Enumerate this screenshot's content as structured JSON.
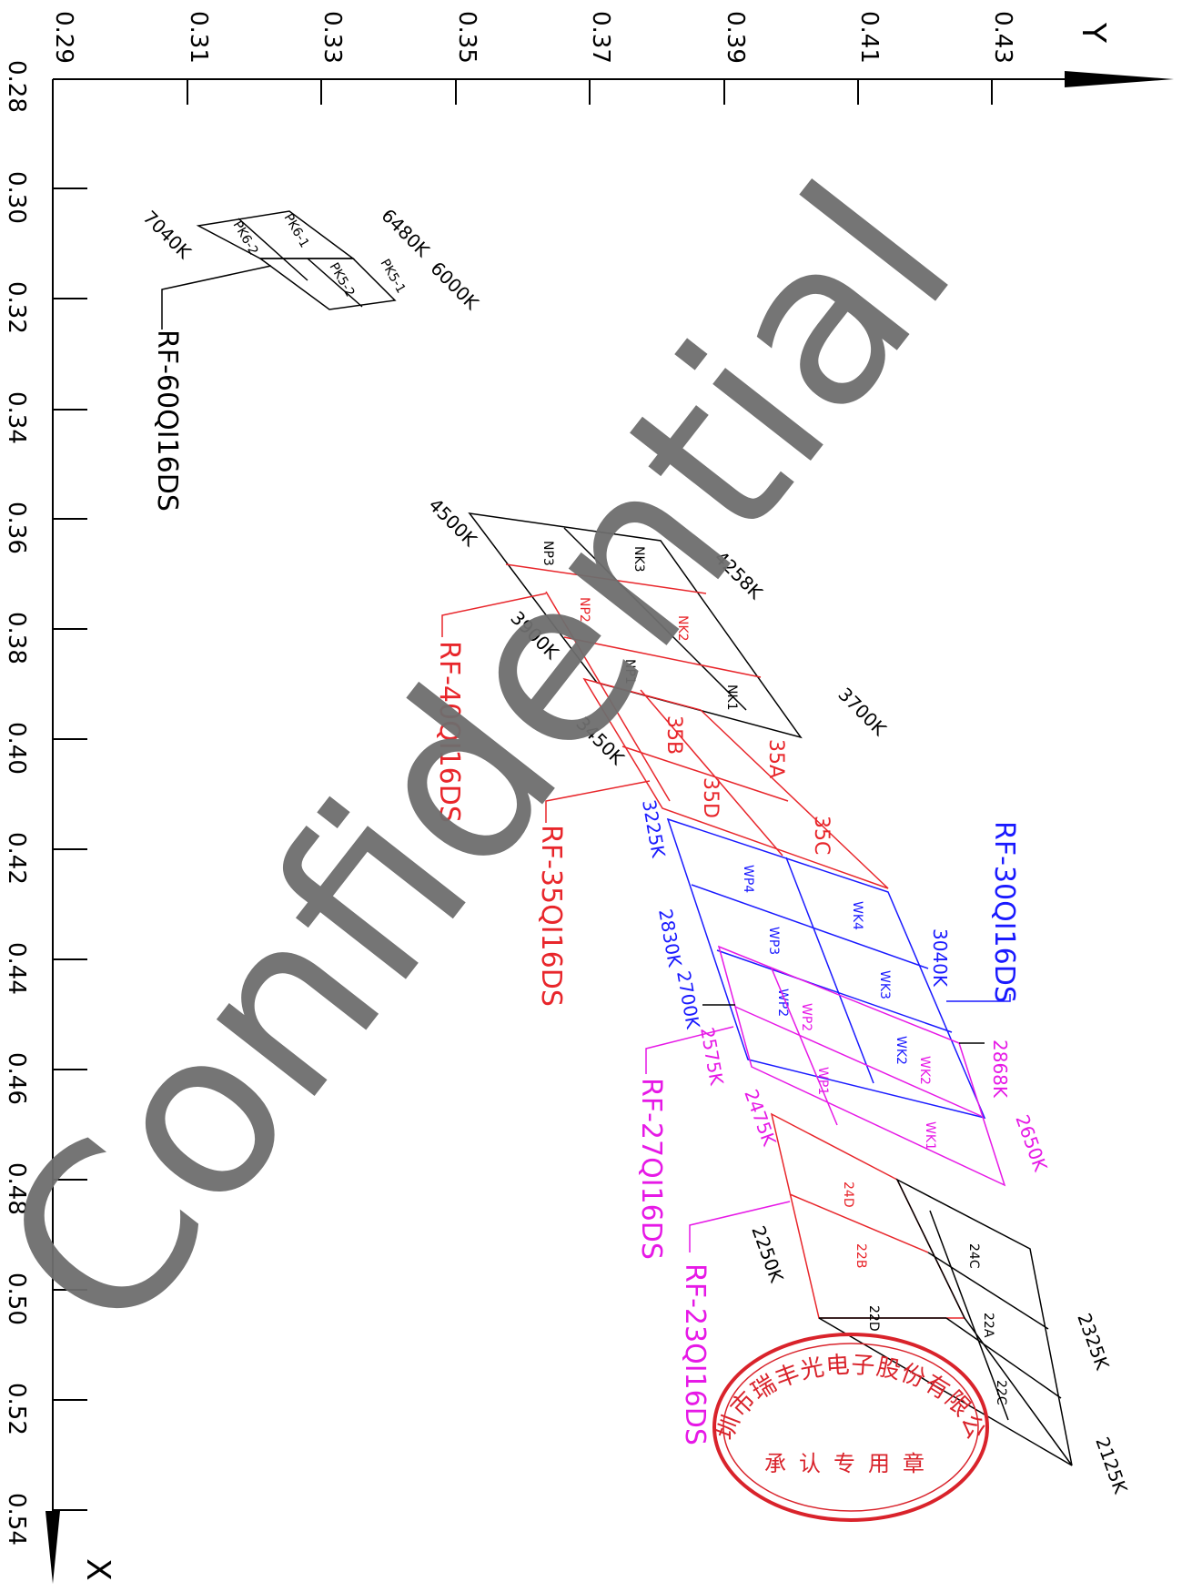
{
  "axes": {
    "x_axis_label": "X",
    "y_axis_label": "Y",
    "x_ticks": [
      "0.28",
      "0.30",
      "0.32",
      "0.34",
      "0.36",
      "0.38",
      "0.40",
      "0.42",
      "0.44",
      "0.46",
      "0.48",
      "0.50",
      "0.52",
      "0.54"
    ],
    "y_ticks": [
      "0.29",
      "0.31",
      "0.33",
      "0.35",
      "0.37",
      "0.39",
      "0.41",
      "0.43"
    ]
  },
  "groups": [
    {
      "id": "rf60",
      "label": "RF-60QI16DS",
      "color": "#000000",
      "cells": [
        "PK6-1",
        "PK6-2",
        "PK5-1",
        "PK5-2"
      ],
      "cct": [
        "7040K",
        "6480K",
        "6000K"
      ]
    },
    {
      "id": "rf40",
      "label": "RF-40QI16DS",
      "color": "#e8262b",
      "cells_black": [
        "NP3",
        "NK3",
        "NP1",
        "NK1"
      ],
      "cells_red": [
        "NP2",
        "NK2"
      ],
      "cct": [
        "4500K",
        "4258K",
        "3900K",
        "3700K"
      ]
    },
    {
      "id": "rf35",
      "label": "RF-35QI16DS",
      "color": "#e8262b",
      "cells": [
        "35A",
        "35B",
        "35C",
        "35D"
      ],
      "cct": [
        "3450K",
        "3225K"
      ]
    },
    {
      "id": "rf30",
      "label": "RF-30QI16DS",
      "color": "#1a1aff",
      "cells": [
        "WP4",
        "WK4",
        "WP3",
        "WK3",
        "WP2",
        "WK2",
        "WP1",
        "WK1"
      ],
      "cct": [
        "3040K",
        "2830K",
        "2700K"
      ]
    },
    {
      "id": "rf27",
      "label": "RF-27QI16DS",
      "color": "#e619e6",
      "cells": [
        "WP2",
        "WK2",
        "WP1",
        "WK1"
      ],
      "cct": [
        "2868K",
        "2575K",
        "2650K",
        "2475K"
      ]
    },
    {
      "id": "rf23",
      "label": "RF-23QI16DS",
      "color": "#e619e6",
      "cells_red": [
        "24D",
        "22B"
      ],
      "cells_black": [
        "24C",
        "22A",
        "22D",
        "22C"
      ],
      "cct": [
        "2250K",
        "2325K",
        "2125K"
      ]
    }
  ],
  "stamp": {
    "company": "深圳市瑞丰光电子股份有限公司",
    "purpose": "承认专用章",
    "color": "#d9232b"
  },
  "watermark": "Confidential",
  "colors": {
    "axis": "#000000",
    "black": "#000000",
    "red": "#e8262b",
    "blue": "#1a1aff",
    "magenta": "#e619e6",
    "watermark": "#6e6e6e"
  }
}
